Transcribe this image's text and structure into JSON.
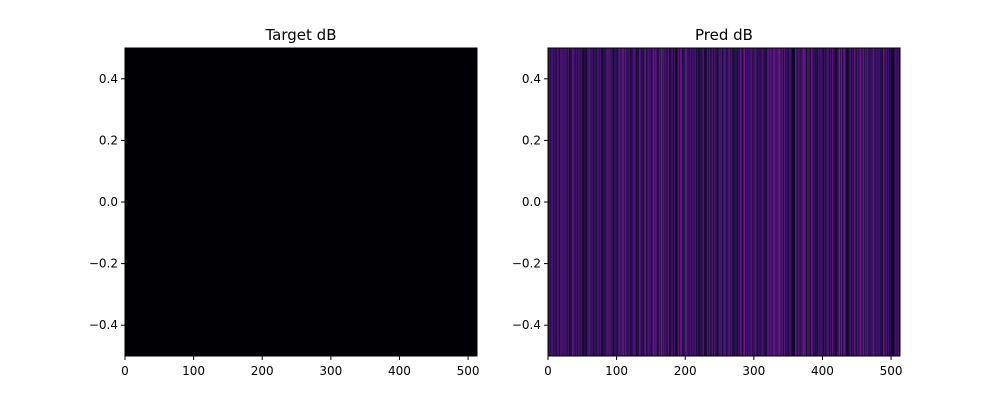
{
  "chart_data": [
    {
      "type": "heatmap",
      "title": "Target dB",
      "xlim": [
        0,
        513
      ],
      "ylim": [
        -0.5,
        0.5
      ],
      "x_ticks": [
        0,
        100,
        200,
        300,
        400,
        500
      ],
      "y_ticks": [
        -0.4,
        -0.2,
        0.0,
        0.2,
        0.4
      ],
      "x_tick_labels": [
        "0",
        "100",
        "200",
        "300",
        "400",
        "500"
      ],
      "y_tick_labels": [
        "−0.4",
        "−0.2",
        "0.0",
        "0.2",
        "0.4"
      ],
      "colormap": "magma",
      "uniform_value": 0.0
    },
    {
      "type": "heatmap",
      "title": "Pred dB",
      "xlim": [
        0,
        513
      ],
      "ylim": [
        -0.5,
        0.5
      ],
      "x_ticks": [
        0,
        100,
        200,
        300,
        400,
        500
      ],
      "y_ticks": [
        -0.4,
        -0.2,
        0.0,
        0.2,
        0.4
      ],
      "x_tick_labels": [
        "0",
        "100",
        "200",
        "300",
        "400",
        "500"
      ],
      "y_tick_labels": [
        "−0.4",
        "−0.2",
        "0.0",
        "0.2",
        "0.4"
      ],
      "colormap": "magma",
      "columns_shown": "vertical stripes, single row",
      "value_range_observed": [
        0.05,
        0.3
      ]
    }
  ]
}
